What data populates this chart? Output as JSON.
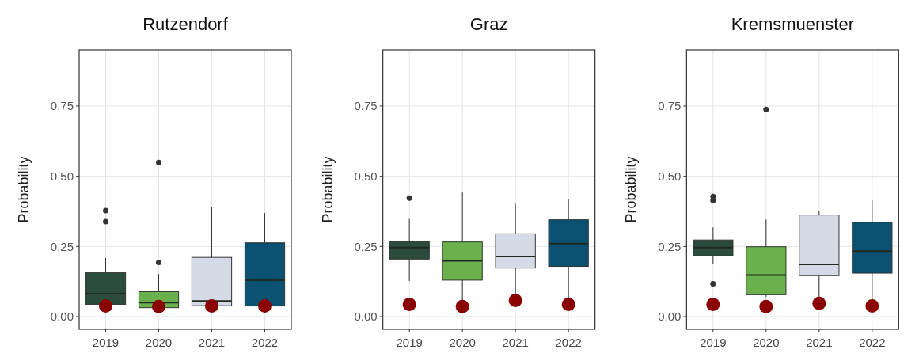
{
  "chart_data": [
    {
      "type": "box",
      "title": "Rutzendorf",
      "ylabel": "Probability",
      "categories": [
        "2019",
        "2020",
        "2021",
        "2022"
      ],
      "ylim": [
        -0.045,
        0.95
      ],
      "yticks": [
        {
          "value": 0,
          "label": "0.00"
        },
        {
          "value": 0.25,
          "label": "0.25"
        },
        {
          "value": 0.5,
          "label": "0.50"
        },
        {
          "value": 0.75,
          "label": "0.75"
        }
      ],
      "grid": true,
      "series": [
        {
          "type": "box",
          "colors": [
            "#2b4b3c",
            "#6ab04c",
            "#d5dbe6",
            "#0b5272"
          ],
          "boxes": [
            {
              "low": 0.044,
              "q1": 0.044,
              "median": 0.082,
              "q3": 0.157,
              "high": 0.209,
              "outliers": [
                0.338,
                0.378
              ]
            },
            {
              "low": 0.032,
              "q1": 0.032,
              "median": 0.05,
              "q3": 0.089,
              "high": 0.152,
              "outliers": [
                0.193,
                0.549
              ]
            },
            {
              "low": 0.039,
              "q1": 0.039,
              "median": 0.056,
              "q3": 0.211,
              "high": 0.392
            },
            {
              "low": 0.038,
              "q1": 0.038,
              "median": 0.13,
              "q3": 0.263,
              "high": 0.369
            }
          ]
        },
        {
          "type": "scatter",
          "color": "#8b0000",
          "marker": "circle",
          "values": [
            0.038,
            0.036,
            0.038,
            0.038
          ]
        }
      ]
    },
    {
      "type": "box",
      "title": "Graz",
      "ylabel": "Probability",
      "categories": [
        "2019",
        "2020",
        "2021",
        "2022"
      ],
      "ylim": [
        -0.045,
        0.95
      ],
      "yticks": [
        {
          "value": 0,
          "label": "0.00"
        },
        {
          "value": 0.25,
          "label": "0.25"
        },
        {
          "value": 0.5,
          "label": "0.50"
        },
        {
          "value": 0.75,
          "label": "0.75"
        }
      ],
      "grid": true,
      "series": [
        {
          "type": "box",
          "colors": [
            "#2b4b3c",
            "#6ab04c",
            "#d5dbe6",
            "#0b5272"
          ],
          "boxes": [
            {
              "low": 0.127,
              "q1": 0.205,
              "median": 0.246,
              "q3": 0.268,
              "high": 0.348,
              "outliers": [
                0.422
              ]
            },
            {
              "low": 0.05,
              "q1": 0.13,
              "median": 0.199,
              "q3": 0.266,
              "high": 0.442
            },
            {
              "low": 0.075,
              "q1": 0.173,
              "median": 0.214,
              "q3": 0.295,
              "high": 0.402
            },
            {
              "low": 0.056,
              "q1": 0.179,
              "median": 0.26,
              "q3": 0.345,
              "high": 0.419
            }
          ]
        },
        {
          "type": "scatter",
          "color": "#8b0000",
          "marker": "circle",
          "values": [
            0.044,
            0.036,
            0.058,
            0.044
          ]
        }
      ]
    },
    {
      "type": "box",
      "title": "Kremsmuenster",
      "ylabel": "Probability",
      "categories": [
        "2019",
        "2020",
        "2021",
        "2022"
      ],
      "ylim": [
        -0.045,
        0.95
      ],
      "yticks": [
        {
          "value": 0,
          "label": "0.00"
        },
        {
          "value": 0.25,
          "label": "0.25"
        },
        {
          "value": 0.5,
          "label": "0.50"
        },
        {
          "value": 0.75,
          "label": "0.75"
        }
      ],
      "grid": true,
      "series": [
        {
          "type": "box",
          "colors": [
            "#2b4b3c",
            "#6ab04c",
            "#d5dbe6",
            "#0b5272"
          ],
          "boxes": [
            {
              "low": 0.188,
              "q1": 0.216,
              "median": 0.246,
              "q3": 0.273,
              "high": 0.318,
              "outliers": [
                0.117,
                0.414,
                0.428
              ]
            },
            {
              "low": 0.07,
              "q1": 0.078,
              "median": 0.148,
              "q3": 0.249,
              "high": 0.346,
              "outliers": [
                0.738
              ]
            },
            {
              "low": 0.066,
              "q1": 0.146,
              "median": 0.186,
              "q3": 0.362,
              "high": 0.378
            },
            {
              "low": 0.056,
              "q1": 0.155,
              "median": 0.233,
              "q3": 0.336,
              "high": 0.414
            }
          ]
        },
        {
          "type": "scatter",
          "color": "#8b0000",
          "marker": "circle",
          "values": [
            0.044,
            0.036,
            0.047,
            0.038
          ]
        }
      ]
    }
  ]
}
